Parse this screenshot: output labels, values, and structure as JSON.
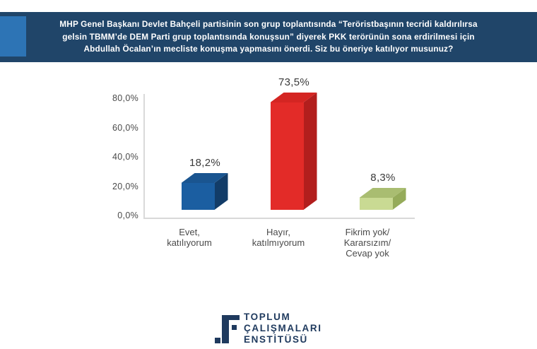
{
  "header": {
    "title_lines": [
      "MHP Genel Başkanı Devlet Bahçeli partisinin son grup toplantısında “Teröristbaşının tecridi kaldırılırsa",
      "gelsin TBMM’de DEM Parti grup toplantısında konuşsun” diyerek PKK terörünün sona erdirilmesi için",
      "Abdullah Öcalan’ın mecliste konuşma yapmasını önerdi. Siz bu öneriye katılıyor musunuz?"
    ],
    "bg_color": "#204569",
    "accent_color": "#2d74b5",
    "text_color": "#ffffff"
  },
  "chart_data": {
    "type": "bar",
    "style": "3d-cube",
    "title": "",
    "xlabel": "",
    "ylabel": "",
    "legend": false,
    "gridlines": false,
    "ylim": [
      0,
      80
    ],
    "categories": [
      {
        "id": "evet-katiliyorum",
        "label": "Evet, katılıyorum",
        "lines": [
          "Evet,",
          "katılıyorum"
        ]
      },
      {
        "id": "hayir-katilmiyorum",
        "label": "Hayır, katılmıyorum",
        "lines": [
          "Hayır,",
          "katılmıyorum"
        ]
      },
      {
        "id": "fikrim-yok-kararsizim-cevap-yok",
        "label": "Fikrim yok/ Kararsızım/ Cevap yok",
        "lines": [
          "Fikrim yok/",
          "Kararsızım/",
          "Cevap yok"
        ]
      }
    ],
    "values": [
      18.2,
      73.5,
      8.3
    ],
    "data_labels": [
      "18,2%",
      "73,5%",
      "8,3%"
    ],
    "bar_colors": [
      {
        "front": "#1b5ea1",
        "top": "#1a5590",
        "side": "#123c68"
      },
      {
        "front": "#e32b28",
        "top": "#d42522",
        "side": "#b21e1d"
      },
      {
        "front": "#c9da93",
        "top": "#a9bd71",
        "side": "#95ab5a"
      }
    ],
    "y_ticks": [
      {
        "label": "80,0%",
        "value": 80
      },
      {
        "label": "60,0%",
        "value": 60
      },
      {
        "label": "40,0%",
        "value": 40
      },
      {
        "label": "20,0%",
        "value": 20
      },
      {
        "label": "0,0%",
        "value": 0
      }
    ],
    "axis_color": "#d9d9d9",
    "tick_color": "#4a4a4a",
    "data_label_color": "#3a3a3a"
  },
  "footer": {
    "org_lines": [
      "TOPLUM",
      "ÇALIŞMALARI",
      "ENSTİTÜSÜ"
    ],
    "logo_color": "#1f3a5e"
  }
}
